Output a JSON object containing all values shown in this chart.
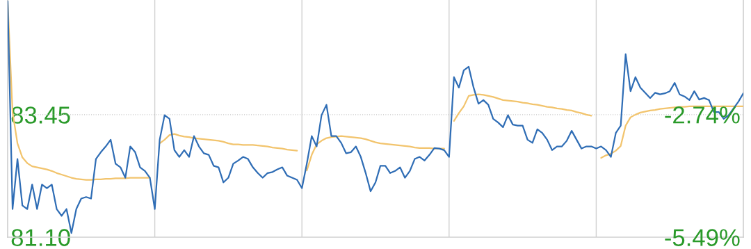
{
  "chart_data": {
    "type": "line",
    "ylim": [
      81.1,
      85.65
    ],
    "y2lim": [
      -5.49,
      -0.17
    ],
    "tick_labels": "y",
    "categories": [
      null,
      null,
      null,
      null,
      null,
      null,
      null,
      null,
      null,
      null,
      null,
      null,
      null,
      null,
      null,
      null,
      null,
      null,
      null,
      null,
      null,
      null,
      null,
      null,
      null,
      null,
      null,
      null,
      null,
      null,
      null,
      null,
      null,
      null,
      null,
      null,
      null,
      null,
      null,
      null,
      null,
      null,
      null,
      null,
      null,
      null,
      null,
      null,
      null,
      null,
      null,
      null,
      null,
      null,
      null,
      null,
      null,
      null,
      null,
      null,
      null,
      null,
      null,
      null,
      null,
      null,
      null,
      null,
      null,
      null,
      null,
      null,
      null,
      null,
      null,
      null,
      null,
      null,
      null,
      null,
      null,
      null,
      null,
      null,
      null,
      null,
      null,
      null,
      null,
      null,
      null,
      null,
      null,
      null,
      null,
      null,
      null,
      null,
      null,
      null,
      null,
      null,
      null,
      null,
      null,
      null,
      null,
      null,
      null,
      null,
      null,
      null,
      null,
      null,
      null,
      null,
      null,
      null,
      null,
      null,
      null,
      null,
      null,
      null,
      null,
      null,
      null,
      null,
      null,
      null,
      null,
      null,
      null,
      null,
      null,
      null,
      null,
      null,
      null,
      null,
      null,
      null,
      null,
      null,
      null,
      null,
      null,
      null,
      null,
      null,
      null
    ],
    "ref_lines": [
      {
        "axis": "y",
        "value": 83.45,
        "color": "#c8c8c8",
        "line_style": "dotted"
      }
    ],
    "yticks": [
      {
        "value": 83.45,
        "label": "83.45"
      },
      {
        "value": 81.1,
        "label": "81.10"
      }
    ],
    "y2ticks": [
      {
        "value": -2.74,
        "label": "-2.74%"
      },
      {
        "value": -5.49,
        "label": "-5.49%"
      }
    ],
    "series": [
      {
        "color": "#2f6db5",
        "values": [
          85.63,
          81.64,
          82.6,
          81.71,
          81.64,
          82.11,
          81.64,
          82.11,
          82.04,
          82.11,
          81.64,
          81.51,
          81.64,
          81.18,
          81.64,
          81.84,
          81.87,
          81.84,
          82.6,
          82.73,
          82.84,
          82.97,
          82.51,
          82.44,
          82.24,
          82.84,
          82.73,
          82.44,
          82.37,
          82.24,
          81.64,
          82.97,
          83.44,
          83.37,
          82.77,
          82.64,
          82.77,
          82.64,
          83.04,
          82.84,
          82.71,
          82.68,
          82.47,
          82.44,
          82.15,
          82.24,
          82.51,
          82.57,
          82.64,
          82.6,
          82.44,
          82.33,
          82.24,
          82.33,
          82.35,
          82.4,
          82.44,
          82.28,
          82.24,
          82.2,
          82.04,
          82.51,
          83.04,
          82.84,
          83.44,
          83.64,
          83.04,
          83.04,
          82.91,
          82.71,
          82.73,
          82.84,
          82.64,
          82.33,
          81.98,
          82.15,
          82.47,
          82.47,
          82.33,
          82.37,
          82.44,
          82.24,
          82.37,
          82.6,
          82.64,
          82.57,
          82.68,
          82.81,
          82.8,
          82.77,
          82.64,
          84.17,
          83.97,
          84.3,
          84.37,
          83.97,
          83.66,
          83.73,
          83.64,
          83.37,
          83.3,
          83.21,
          83.44,
          83.26,
          83.24,
          83.24,
          82.97,
          82.91,
          83.17,
          83.1,
          82.97,
          82.77,
          82.84,
          82.84,
          82.95,
          83.14,
          82.97,
          82.8,
          82.84,
          82.84,
          82.8,
          82.84,
          82.77,
          82.64,
          83.1,
          83.24,
          84.61,
          83.9,
          84.17,
          83.97,
          83.87,
          83.77,
          83.87,
          83.84,
          83.86,
          83.9,
          84.06,
          83.84,
          83.8,
          83.73,
          83.9,
          83.74,
          83.77,
          83.73,
          83.5,
          83.5,
          83.37,
          83.44,
          83.57,
          83.7,
          83.86
        ]
      },
      {
        "color": "#f2c46d",
        "values": [
          85.63,
          83.5,
          82.9,
          82.63,
          82.52,
          82.46,
          82.44,
          82.42,
          82.4,
          82.37,
          82.33,
          82.3,
          82.27,
          82.24,
          82.22,
          82.21,
          82.2,
          82.2,
          82.21,
          82.21,
          82.22,
          82.22,
          82.23,
          82.23,
          82.23,
          82.24,
          82.24,
          82.24,
          82.24,
          82.24,
          null,
          82.9,
          82.97,
          83.06,
          83.08,
          83.05,
          83.03,
          83.02,
          83.0,
          82.99,
          82.98,
          82.97,
          82.96,
          82.95,
          82.93,
          82.9,
          82.88,
          82.88,
          82.87,
          82.87,
          82.87,
          82.86,
          82.85,
          82.84,
          82.82,
          82.81,
          82.8,
          82.78,
          82.77,
          82.76,
          null,
          82.38,
          82.68,
          82.88,
          82.95,
          83.0,
          83.02,
          83.03,
          83.04,
          83.03,
          83.02,
          83.01,
          83.0,
          82.98,
          82.95,
          82.92,
          82.9,
          82.89,
          82.88,
          82.87,
          82.86,
          82.85,
          82.84,
          82.82,
          82.81,
          82.81,
          82.81,
          82.8,
          82.8,
          82.8,
          null,
          83.33,
          83.48,
          83.61,
          83.81,
          83.83,
          83.84,
          83.83,
          83.81,
          83.79,
          83.76,
          83.73,
          83.72,
          83.71,
          83.7,
          83.68,
          83.67,
          83.65,
          83.64,
          83.62,
          83.6,
          83.59,
          83.57,
          83.56,
          83.54,
          83.53,
          83.5,
          83.48,
          83.45,
          83.43,
          null,
          82.62,
          82.67,
          82.7,
          82.76,
          82.85,
          83.24,
          83.4,
          83.45,
          83.49,
          83.51,
          83.53,
          83.54,
          83.56,
          83.57,
          83.58,
          83.59,
          83.6,
          83.6,
          83.61,
          83.61,
          83.61,
          83.61,
          83.61,
          83.61,
          83.61,
          83.61,
          83.61,
          83.61,
          83.61,
          83.61
        ]
      }
    ]
  }
}
